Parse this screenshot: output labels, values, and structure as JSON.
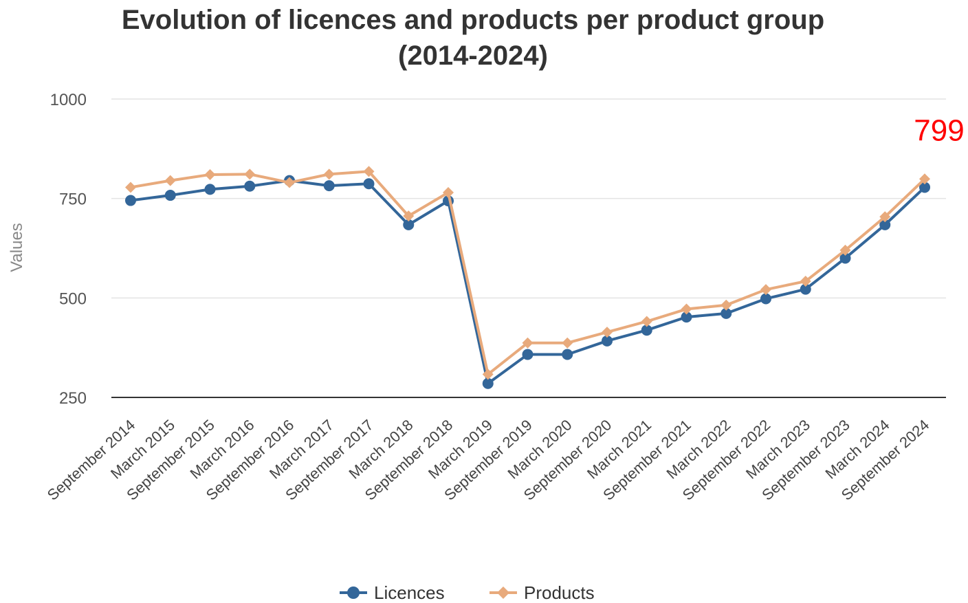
{
  "chart_data": {
    "type": "line",
    "title_line1": "Evolution of licences and products per product group",
    "title_line2": "(2014-2024)",
    "xlabel": "",
    "ylabel": "Values",
    "ylim": [
      250,
      1000
    ],
    "yticks": [
      "250",
      "500",
      "750",
      "1000"
    ],
    "grid": true,
    "legend_position": "bottom-center",
    "categories": [
      "September 2014",
      "March 2015",
      "September 2015",
      "March 2016",
      "September 2016",
      "March 2017",
      "September 2017",
      "March 2018",
      "September 2018",
      "March 2019",
      "September 2019",
      "March 2020",
      "September 2020",
      "March 2021",
      "September 2021",
      "March 2022",
      "September 2022",
      "March 2023",
      "September 2023",
      "March 2024",
      "September 2024"
    ],
    "series": [
      {
        "name": "Licences",
        "color": "#336699",
        "marker": "circle",
        "values": [
          745,
          758,
          773,
          781,
          795,
          782,
          787,
          684,
          744,
          285,
          358,
          358,
          392,
          419,
          452,
          461,
          498,
          522,
          600,
          684,
          778
        ]
      },
      {
        "name": "Products",
        "color": "#e8aa7c",
        "marker": "diamond",
        "values": [
          778,
          795,
          810,
          811,
          790,
          811,
          818,
          706,
          765,
          308,
          387,
          387,
          414,
          441,
          472,
          482,
          521,
          542,
          620,
          704,
          799
        ]
      }
    ],
    "annotation": {
      "text": "799",
      "color": "#ff0000"
    }
  }
}
